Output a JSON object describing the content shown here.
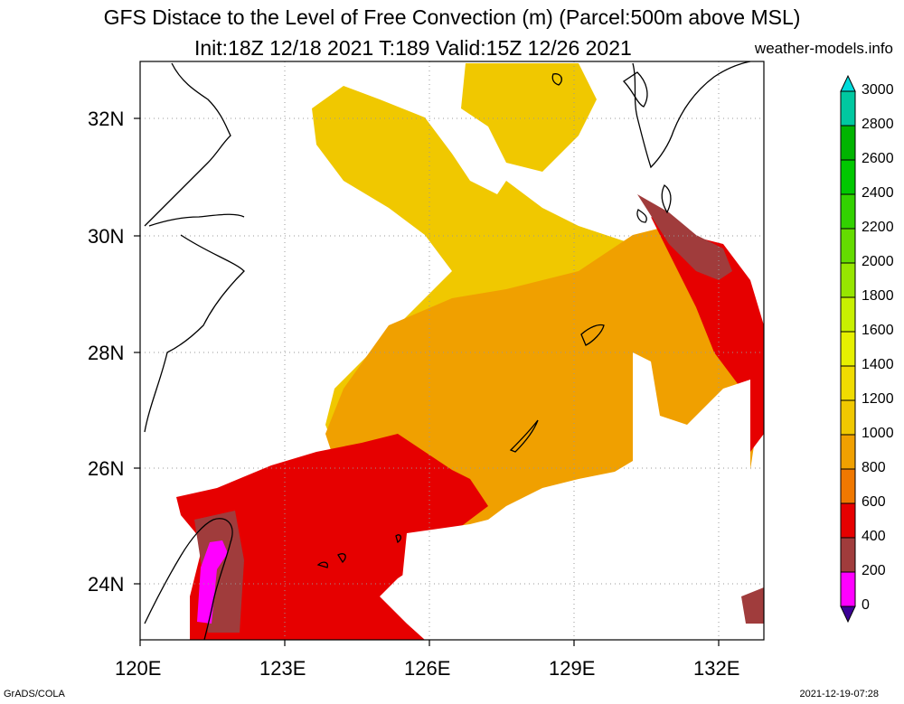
{
  "title": "GFS Distace to the Level of Free Convection (m) (Parcel:500m above MSL)",
  "subtitle": "Init:18Z 12/18 2021 T:189 Valid:15Z 12/26 2021",
  "site": "weather-models.info",
  "footer_left": "GrADS/COLA",
  "footer_right": "2021-12-19-07:28",
  "lat_labels": [
    "32N",
    "30N",
    "28N",
    "26N",
    "24N"
  ],
  "lon_labels": [
    "120E",
    "123E",
    "126E",
    "129E",
    "132E"
  ],
  "colorbar": {
    "labels": [
      "3000",
      "2800",
      "2600",
      "2400",
      "2200",
      "2000",
      "1800",
      "1600",
      "1400",
      "1200",
      "1000",
      "800",
      "600",
      "400",
      "200",
      "0"
    ],
    "colors": [
      "#00dcdc",
      "#00c8a0",
      "#00b400",
      "#00c800",
      "#32d200",
      "#64dc00",
      "#96e600",
      "#c8f000",
      "#e6f000",
      "#f0dc00",
      "#f0c800",
      "#f0a000",
      "#f07800",
      "#e60000",
      "#a03c3c",
      "#ff00ff",
      "#3c0096"
    ]
  }
}
